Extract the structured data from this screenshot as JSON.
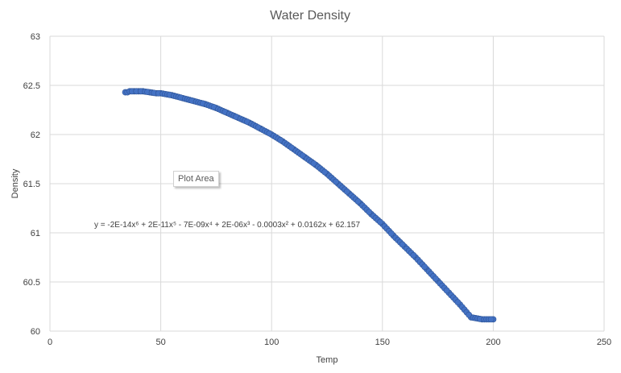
{
  "chart_data": {
    "type": "scatter",
    "title": "Water Density",
    "xlabel": "Temp",
    "ylabel": "Density",
    "xlim": [
      0,
      250
    ],
    "ylim": [
      60,
      63
    ],
    "x_ticks": [
      "0",
      "50",
      "100",
      "150",
      "200",
      "250"
    ],
    "y_ticks": [
      "60",
      "60.5",
      "61",
      "61.5",
      "62",
      "62.5",
      "63"
    ],
    "grid": true,
    "legend": "none",
    "trendline_equation": "y = -2E-14x⁶ + 2E-11x⁵ - 7E-09x⁴ + 2E-06x³ - 0.0003x² + 0.0162x + 62.157",
    "series": [
      {
        "color": "#4472C4",
        "x": [
          34,
          35,
          36,
          38,
          40,
          42,
          45,
          48,
          50,
          55,
          60,
          65,
          70,
          75,
          80,
          85,
          90,
          95,
          100,
          105,
          110,
          115,
          120,
          125,
          130,
          135,
          140,
          145,
          150,
          155,
          160,
          165,
          170,
          175,
          180,
          185,
          190,
          195,
          200
        ],
        "y": [
          62.43,
          62.43,
          62.44,
          62.44,
          62.44,
          62.44,
          62.43,
          62.42,
          62.42,
          62.4,
          62.37,
          62.34,
          62.31,
          62.27,
          62.22,
          62.17,
          62.12,
          62.06,
          62.0,
          61.93,
          61.85,
          61.77,
          61.69,
          61.6,
          61.5,
          61.4,
          61.3,
          61.19,
          61.09,
          60.97,
          60.86,
          60.75,
          60.63,
          60.51,
          60.39,
          60.27,
          60.14,
          60.02,
          59.9
        ]
      }
    ]
  },
  "tooltip_label": "Plot Area"
}
